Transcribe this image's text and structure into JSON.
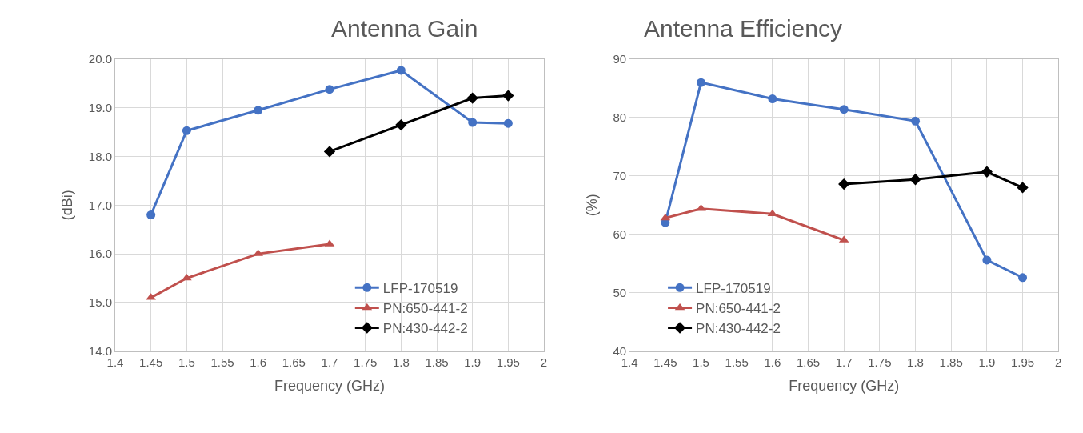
{
  "chart_data": [
    {
      "type": "line",
      "title": "Antenna Gain",
      "xlabel": "Frequency (GHz)",
      "ylabel": "(dBi)",
      "xlim": [
        1.4,
        2
      ],
      "xticks": [
        1.4,
        1.45,
        1.5,
        1.55,
        1.6,
        1.65,
        1.7,
        1.75,
        1.8,
        1.85,
        1.9,
        1.95,
        2
      ],
      "ylim": [
        14,
        20
      ],
      "yticks": [
        {
          "value": 14,
          "label": "14.0"
        },
        {
          "value": 15,
          "label": "15.0"
        },
        {
          "value": 16,
          "label": "16.0"
        },
        {
          "value": 17,
          "label": "17.0"
        },
        {
          "value": 18,
          "label": "18.0"
        },
        {
          "value": 19,
          "label": "19.0"
        },
        {
          "value": 20,
          "label": "20.0"
        }
      ],
      "grid": true,
      "legend": "bottom right",
      "series": [
        {
          "name": "LFP-170519",
          "color": "#4472c4",
          "marker": "circle",
          "x": [
            1.45,
            1.5,
            1.6,
            1.7,
            1.8,
            1.9,
            1.95
          ],
          "values": [
            16.8,
            18.53,
            18.95,
            19.38,
            19.77,
            18.7,
            18.68
          ]
        },
        {
          "name": "PN:650-441-2",
          "color": "#c0504d",
          "marker": "triangle",
          "x": [
            1.45,
            1.5,
            1.6,
            1.7
          ],
          "values": [
            15.1,
            15.5,
            16.0,
            16.2
          ]
        },
        {
          "name": "PN:430-442-2",
          "color": "#000000",
          "marker": "diamond",
          "x": [
            1.7,
            1.8,
            1.9,
            1.95
          ],
          "values": [
            18.1,
            18.65,
            19.2,
            19.25
          ]
        }
      ]
    },
    {
      "type": "line",
      "title": "Antenna Efficiency",
      "xlabel": "Frequency (GHz)",
      "ylabel": "(%)",
      "xlim": [
        1.4,
        2
      ],
      "xticks": [
        1.4,
        1.45,
        1.5,
        1.55,
        1.6,
        1.65,
        1.7,
        1.75,
        1.8,
        1.85,
        1.9,
        1.95,
        2
      ],
      "ylim": [
        40,
        90
      ],
      "yticks": [
        40,
        50,
        60,
        70,
        80,
        90
      ],
      "grid": true,
      "legend": "bottom left",
      "series": [
        {
          "name": "LFP-170519",
          "color": "#4472c4",
          "marker": "circle",
          "x": [
            1.45,
            1.5,
            1.6,
            1.7,
            1.8,
            1.9,
            1.95
          ],
          "values": [
            62,
            86,
            83.2,
            81.4,
            79.4,
            55.6,
            52.6
          ]
        },
        {
          "name": "PN:650-441-2",
          "color": "#c0504d",
          "marker": "triangle",
          "x": [
            1.45,
            1.5,
            1.6,
            1.7
          ],
          "values": [
            62.8,
            64.4,
            63.5,
            59
          ]
        },
        {
          "name": "PN:430-442-2",
          "color": "#000000",
          "marker": "diamond",
          "x": [
            1.7,
            1.8,
            1.9,
            1.95
          ],
          "values": [
            68.6,
            69.4,
            70.7,
            68
          ]
        }
      ]
    }
  ]
}
